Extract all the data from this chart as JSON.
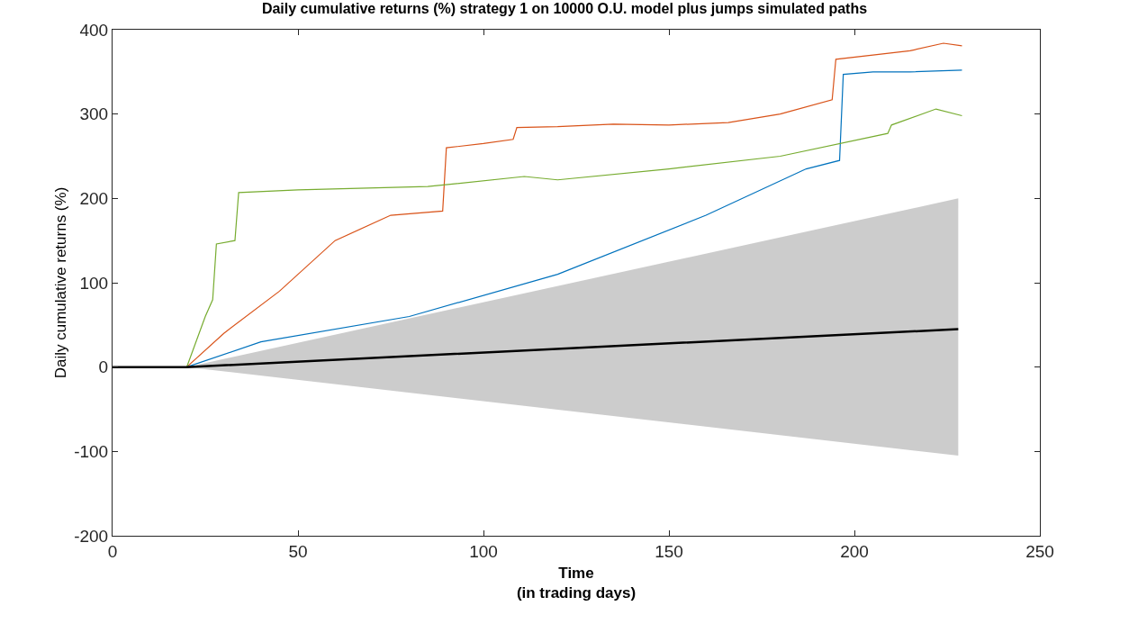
{
  "chart_data": {
    "type": "line",
    "title": "Daily cumulative returns (%) strategy 1 on 10000 O.U. model plus jumps simulated paths",
    "xlabel": "Time\n(in trading days)",
    "ylabel": "Daily cumulative returns (%)",
    "xlim": [
      0,
      250
    ],
    "ylim": [
      -200,
      400
    ],
    "xticks": [
      0,
      50,
      100,
      150,
      200,
      250
    ],
    "yticks": [
      -200,
      -100,
      0,
      100,
      200,
      300,
      400
    ],
    "line_style": "solid",
    "series": [
      {
        "color": "#d95319",
        "x": [
          20,
          30,
          45,
          60,
          75,
          89,
          90,
          100,
          108,
          109,
          120,
          135,
          150,
          166,
          180,
          194,
          195,
          205,
          215,
          224,
          229
        ],
        "values": [
          0,
          40,
          90,
          150,
          180,
          185,
          260,
          265,
          270,
          284,
          285,
          288,
          287,
          290,
          300,
          317,
          365,
          370,
          375,
          384,
          381
        ]
      },
      {
        "color": "#0072bd",
        "x": [
          20,
          40,
          80,
          120,
          160,
          187,
          196,
          197,
          205,
          215,
          229
        ],
        "values": [
          0,
          30,
          60,
          110,
          180,
          235,
          245,
          347,
          350,
          350,
          352
        ]
      },
      {
        "color": "#77ac30",
        "x": [
          20,
          25,
          27,
          28,
          33,
          34,
          50,
          85,
          111,
          120,
          150,
          180,
          209,
          210,
          222,
          229
        ],
        "values": [
          0,
          60,
          80,
          146,
          150,
          207,
          210,
          214,
          226,
          222,
          235,
          250,
          277,
          287,
          306,
          298
        ]
      },
      {
        "color": "#000000",
        "x": [
          0,
          20,
          228
        ],
        "values": [
          0,
          0,
          45
        ],
        "lower": [
          null,
          0,
          -105
        ],
        "upper": [
          null,
          0,
          200
        ]
      }
    ]
  }
}
